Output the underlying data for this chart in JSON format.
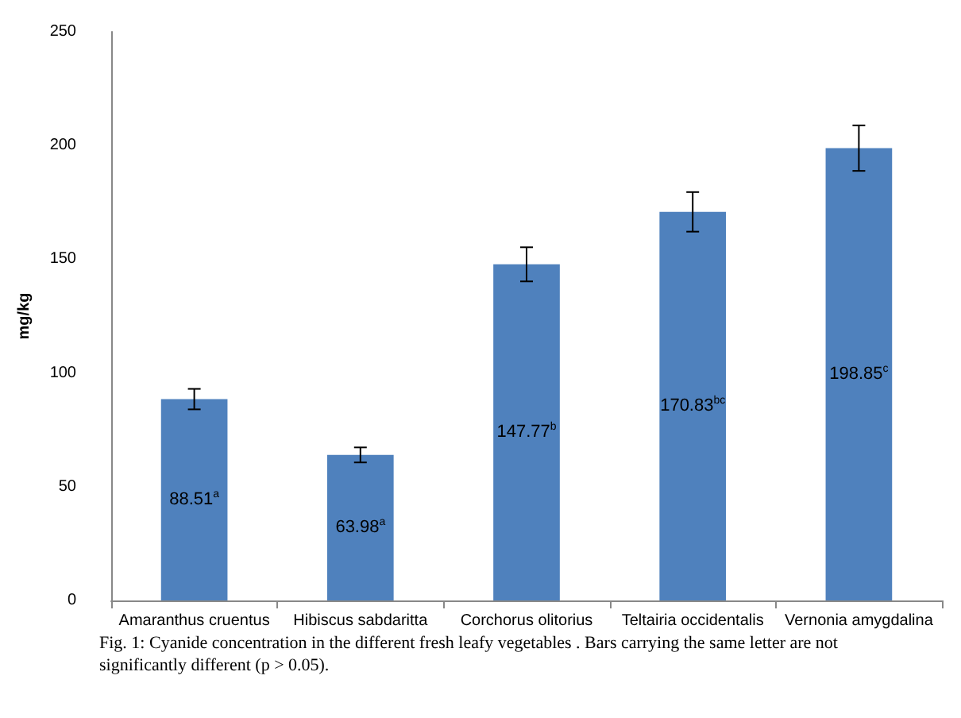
{
  "chart_data": {
    "type": "bar",
    "categories": [
      "Amaranthus cruentus",
      "Hibiscus sabdaritta",
      "Corchorus olitorius",
      "Teltairia occidentalis",
      "Vernonia amygdalina"
    ],
    "values": [
      88.51,
      63.98,
      147.77,
      170.83,
      198.85
    ],
    "value_labels": [
      "88.51$^{a}$",
      "63.98$^{a}$",
      "147.77$^{b}$",
      "170.83$^{bc}$",
      "198.85$^{c}$"
    ],
    "errors": [
      4.5,
      3.3,
      7.5,
      8.7,
      10
    ],
    "color": "#4f81bd",
    "ylabel": "mg/kg",
    "ylim": [
      0,
      250
    ],
    "yticks": [
      0,
      50,
      100,
      150,
      200,
      250
    ],
    "grid": false,
    "annotations": [
      "Fig. 1: Cyanide concentration in the different fresh leafy vegetables . Bars carrying the same letter are not significantly different (p > 0.05)."
    ]
  }
}
